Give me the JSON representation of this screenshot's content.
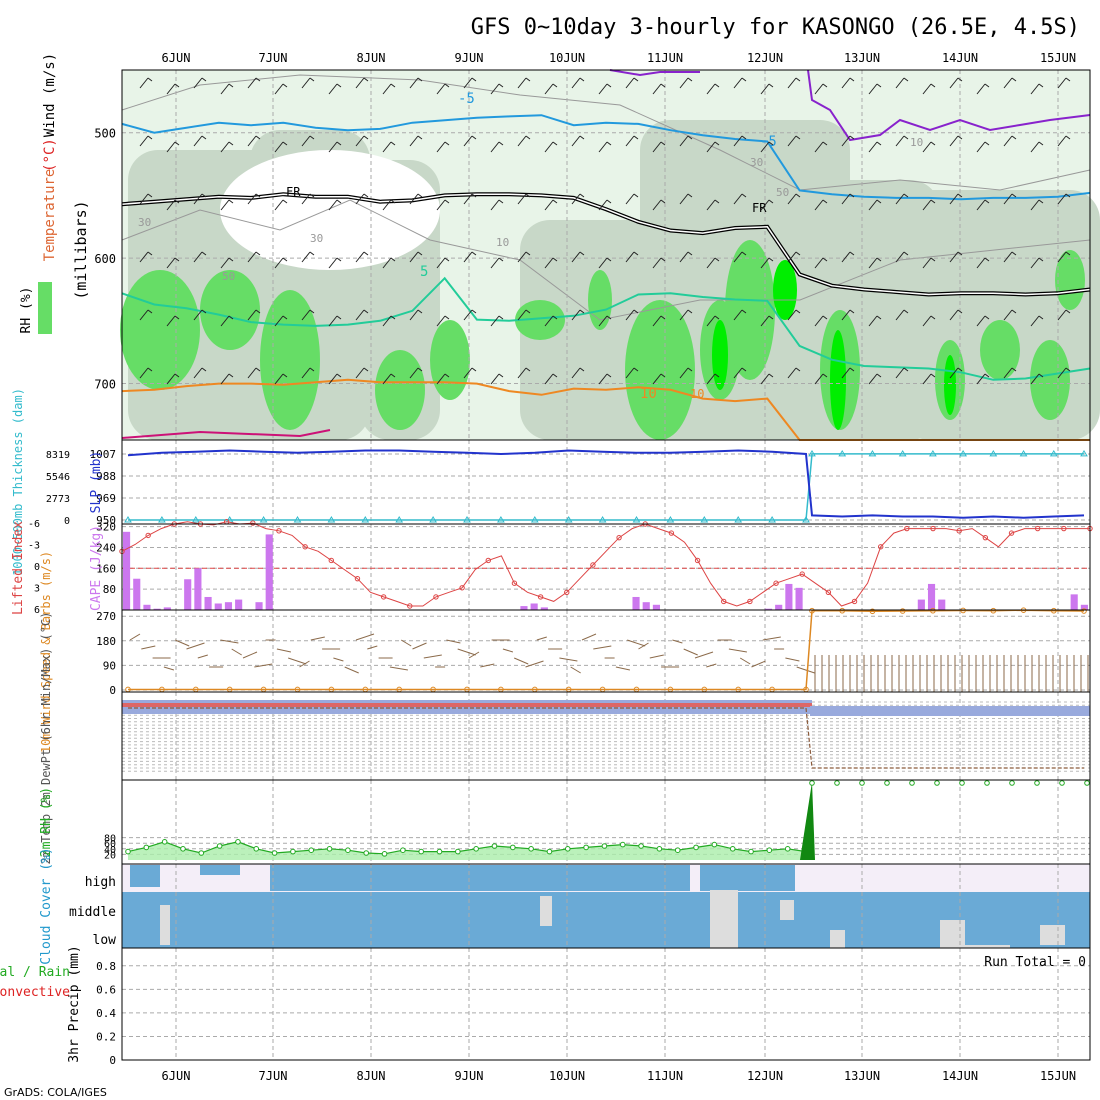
{
  "title": "GFS 0~10day 3-hourly for KASONGO (26.5E, 4.5S)",
  "credit": "GrADS: COLA/IGES",
  "colors": {
    "grid": "#aaaaaa",
    "rh_light": "#e8f4e8",
    "rh_mid": "#c8d8c8",
    "rh_green": "#66dd66",
    "rh_bright": "#00ee00",
    "temp_minus5": "#2299dd",
    "temp_plus5": "#22cc99",
    "temp_plus10": "#ee8822",
    "temp_cold": "#8822cc",
    "slp": "#2233cc",
    "thick": "#33bbcc",
    "cape": "#cc77ee",
    "li": "#dd4444",
    "wind_speed": "#dd8822",
    "barb": "#8b6a4a",
    "rh2m": "#22aa22",
    "cloud": "#6aaad6",
    "cloud_gap": "#dddddd",
    "high_bg": "#f4eef8"
  },
  "chart_data": [
    {
      "id": "upper-air",
      "type": "contour",
      "x_dates": [
        "6JUN",
        "7JUN",
        "8JUN",
        "9JUN",
        "10JUN",
        "11JUN",
        "12JUN",
        "13JUN",
        "14JUN",
        "15JUN"
      ],
      "ylabel": "(millibars)",
      "ylabel_parts": [
        "RH (%)",
        "Temperature",
        "(°C)",
        "Wind (m/s)"
      ],
      "y_ticks": [
        500,
        600,
        700
      ],
      "ylim": [
        745,
        450
      ],
      "contour_labels": [
        "-5",
        "-5",
        "FR",
        "FR",
        "5",
        "10",
        "10",
        "10",
        "30",
        "30",
        "30",
        "50",
        "50",
        "10"
      ],
      "temperature_isotherms": [
        {
          "label": "-5",
          "values": [
            493,
            500,
            496,
            492,
            494,
            492,
            496,
            498,
            497,
            492,
            490,
            488,
            487,
            486,
            494,
            492,
            493,
            498,
            502,
            505,
            507,
            546,
            549,
            551,
            552,
            552,
            553,
            552,
            552,
            551,
            548
          ]
        },
        {
          "label": "FR",
          "values": [
            557,
            555,
            553,
            551,
            552,
            549,
            551,
            551,
            555,
            554,
            550,
            549,
            549,
            550,
            552,
            561,
            571,
            578,
            580,
            576,
            575,
            613,
            622,
            625,
            627,
            629,
            628,
            628,
            629,
            628,
            625
          ]
        },
        {
          "label": "5",
          "values": [
            628,
            637,
            640,
            645,
            651,
            653,
            654,
            653,
            650,
            642,
            616,
            649,
            650,
            648,
            646,
            641,
            629,
            628,
            631,
            633,
            634,
            670,
            681,
            686,
            687,
            688,
            691,
            697,
            696,
            692,
            688
          ]
        },
        {
          "label": "10",
          "values": [
            706,
            705,
            702,
            700,
            700,
            701,
            699,
            697,
            699,
            699,
            699,
            700,
            706,
            709,
            704,
            705,
            703,
            705,
            712,
            714,
            712,
            745,
            745,
            745,
            745,
            745,
            745,
            745,
            745,
            745,
            745
          ]
        }
      ]
    },
    {
      "id": "slp-thickness",
      "type": "line",
      "ylabel": "SLP (mb)",
      "ylabel2": "1000~500mb Thickness (dam)",
      "y_ticks": [
        950,
        969,
        988,
        1007
      ],
      "y_ticks2": [
        0,
        2773,
        5546,
        8319
      ],
      "series": [
        {
          "name": "SLP",
          "values": [
            1006,
            1008,
            1009,
            1010,
            1009,
            1008,
            1009,
            1010,
            1010,
            1009,
            1008,
            1007,
            1008,
            1010,
            1009,
            1008,
            1008,
            1009,
            1010,
            1009,
            1007,
            954,
            953,
            954,
            953,
            953,
            952,
            953,
            952,
            953,
            954
          ]
        },
        {
          "name": "Thickness",
          "values": [
            1,
            1,
            1,
            1,
            1,
            1,
            1,
            1,
            1,
            1,
            1,
            1,
            1,
            1,
            1,
            1,
            1,
            1,
            1,
            1,
            1,
            8330,
            8330,
            8330,
            8330,
            8330,
            8330,
            8330,
            8330,
            8330,
            8330
          ]
        }
      ]
    },
    {
      "id": "cape-li",
      "type": "bar",
      "ylabel": "CAPE (J/kg)",
      "ylabel2": "Lifted Index",
      "y_ticks": [
        80,
        160,
        240,
        320
      ],
      "y_ticks2": [
        6,
        3,
        0,
        -3,
        -6
      ],
      "series": [
        {
          "name": "CAPE",
          "values": [
            300,
            120,
            20,
            5,
            10,
            0,
            118,
            160,
            50,
            25,
            30,
            40,
            0,
            30,
            290,
            0,
            0,
            0,
            0,
            0,
            0,
            0,
            0,
            0,
            0,
            0,
            0,
            0,
            0,
            0,
            0,
            0,
            0,
            0,
            0,
            0,
            0,
            0,
            0,
            15,
            25,
            10,
            0,
            0,
            0,
            0,
            0,
            0,
            0,
            0,
            50,
            30,
            20,
            0,
            0,
            0,
            0,
            0,
            0,
            0,
            0,
            0,
            0,
            5,
            20,
            100,
            85,
            0,
            0,
            0,
            0,
            0,
            0,
            0,
            0,
            0,
            0,
            0,
            40,
            100,
            40,
            0,
            0,
            0,
            0,
            0,
            0,
            0,
            0,
            0,
            0,
            0,
            0,
            60,
            20
          ]
        },
        {
          "name": "Lifted Index",
          "values": [
            -4,
            -2,
            -0.5,
            0,
            1.5,
            1.5,
            1,
            1,
            1.5,
            1.5,
            1.5,
            1,
            1,
            0.5,
            -0.5
          ]
        }
      ]
    },
    {
      "id": "wind10m",
      "type": "line",
      "ylabel": "10m Wind Speed & Barbs (m/s)",
      "y_ticks": [
        0,
        90,
        180,
        270
      ],
      "series": [
        {
          "name": "Speed",
          "values": [
            2,
            2,
            2,
            2,
            2,
            2,
            2,
            2,
            2,
            2,
            2,
            2,
            2,
            2,
            2,
            2,
            2,
            2,
            2,
            2,
            2,
            290,
            290,
            288,
            289,
            290,
            291,
            290,
            292,
            290,
            289
          ]
        }
      ]
    },
    {
      "id": "temp2m",
      "type": "line",
      "ylabel": "2m Temp 2m DewPt (6hr Min/Max) (°C)",
      "series": [
        {
          "name": "Temp",
          "values": [
            1,
            1,
            1,
            1,
            1,
            1,
            1,
            1,
            1,
            1,
            1,
            1,
            1,
            1,
            1,
            1,
            1,
            1,
            1,
            1,
            1,
            68,
            69,
            69,
            68,
            69,
            69,
            68,
            69,
            69,
            68
          ]
        }
      ]
    },
    {
      "id": "rh2m",
      "type": "area",
      "ylabel": "2m RH (%)",
      "y_ticks": [
        20,
        40,
        60,
        80
      ],
      "series": [
        {
          "name": "RH",
          "values": [
            30,
            45,
            65,
            40,
            25,
            50,
            65,
            40,
            25,
            30,
            35,
            40,
            35,
            25,
            22,
            35,
            30,
            30,
            30,
            40,
            50,
            45,
            40,
            30,
            40,
            45,
            50,
            55,
            50,
            40,
            35,
            45,
            55,
            40,
            30,
            35,
            40,
            30
          ]
        }
      ]
    },
    {
      "id": "cloud-cover",
      "type": "heatmap",
      "ylabel": "Cloud Cover (%)",
      "levels": [
        "high",
        "middle",
        "low"
      ]
    },
    {
      "id": "precip",
      "type": "bar",
      "ylabel": "3hr Precip (mm)",
      "ylabel2_parts": [
        "Total / Rain",
        "Convective"
      ],
      "y_ticks": [
        0,
        0.2,
        0.4,
        0.6,
        0.8
      ],
      "annotation": "Run Total = 0",
      "x_dates": [
        "6JUN",
        "7JUN",
        "8JUN",
        "9JUN",
        "10JUN",
        "11JUN",
        "12JUN",
        "13JUN",
        "14JUN",
        "15JUN"
      ],
      "values": []
    }
  ]
}
